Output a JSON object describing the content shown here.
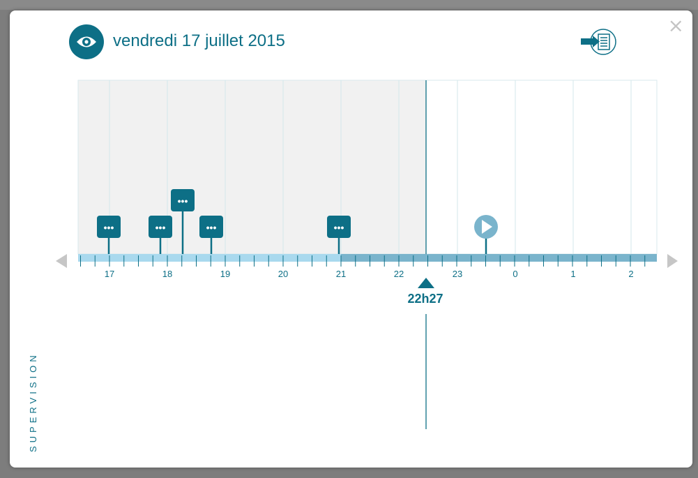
{
  "modal": {
    "date_title": "vendredi 17 juillet 2015",
    "close_label": "×",
    "side_label": "SUPERVISION"
  },
  "timeline": {
    "hour_labels": [
      "17",
      "18",
      "19",
      "20",
      "21",
      "22",
      "23",
      "0",
      "1",
      "2"
    ],
    "current_time_label": "22h27",
    "event_marker_label": "•••",
    "colors": {
      "primary": "#0d6f86",
      "past_fill": "#f1f1f1",
      "bar_light": "#a9d9ee",
      "bar_dark": "#7ab4cc",
      "play": "#7ab4cc"
    }
  },
  "icons": {
    "eye": "eye-icon",
    "export": "export-list-icon",
    "prev": "arrow-left-icon",
    "next": "arrow-right-icon",
    "play": "play-icon",
    "now": "triangle-up-icon"
  }
}
